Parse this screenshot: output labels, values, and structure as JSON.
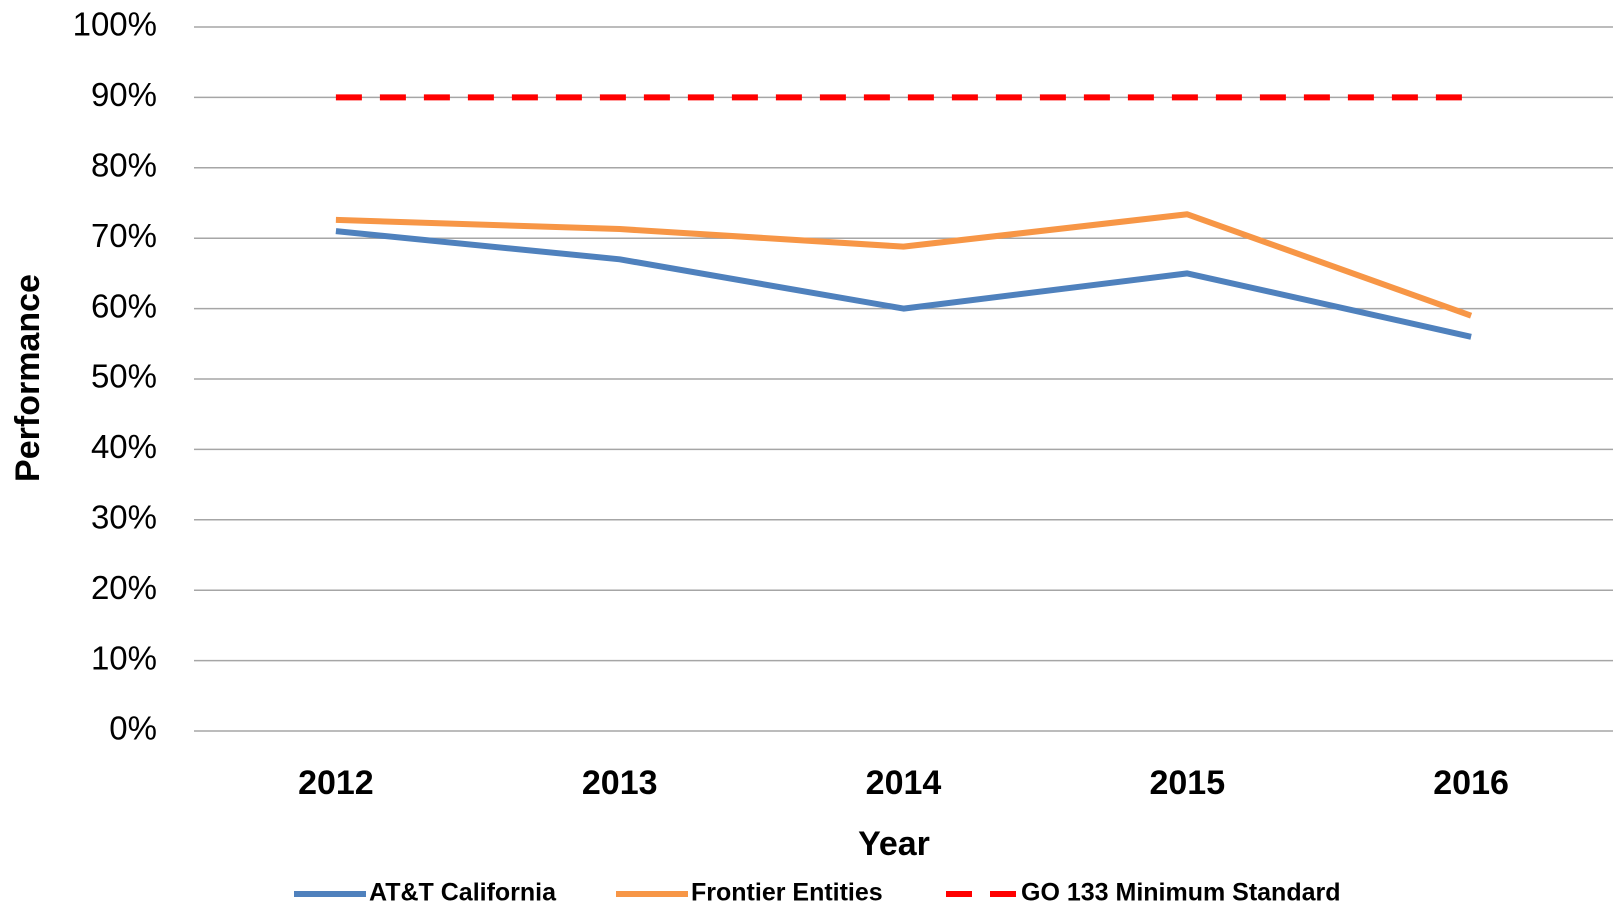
{
  "chart_data": {
    "type": "line",
    "x_label": "Year",
    "y_label": "Performance",
    "categories": [
      "2012",
      "2013",
      "2014",
      "2015",
      "2016"
    ],
    "series": [
      {
        "name": "AT&T California",
        "color": "#4f81bd",
        "values": [
          71,
          67,
          60,
          65,
          56
        ]
      },
      {
        "name": "Frontier Entities",
        "color": "#f79646",
        "values": [
          72.6,
          71.3,
          68.8,
          73.4,
          59
        ]
      },
      {
        "name": "GO 133 Minimum Standard",
        "color": "#ff0000",
        "dashed": true,
        "values": [
          90,
          90,
          90,
          90,
          90
        ]
      }
    ],
    "ylim": [
      0,
      100
    ],
    "yticks": [
      {
        "value": 0,
        "label": "0%"
      },
      {
        "value": 10,
        "label": "10%"
      },
      {
        "value": 20,
        "label": "20%"
      },
      {
        "value": 30,
        "label": "30%"
      },
      {
        "value": 40,
        "label": "40%"
      },
      {
        "value": 50,
        "label": "50%"
      },
      {
        "value": 60,
        "label": "60%"
      },
      {
        "value": 70,
        "label": "70%"
      },
      {
        "value": 80,
        "label": "80%"
      },
      {
        "value": 90,
        "label": "90%"
      },
      {
        "value": 100,
        "label": "100%"
      }
    ],
    "grid": true,
    "legend": "bottom"
  }
}
